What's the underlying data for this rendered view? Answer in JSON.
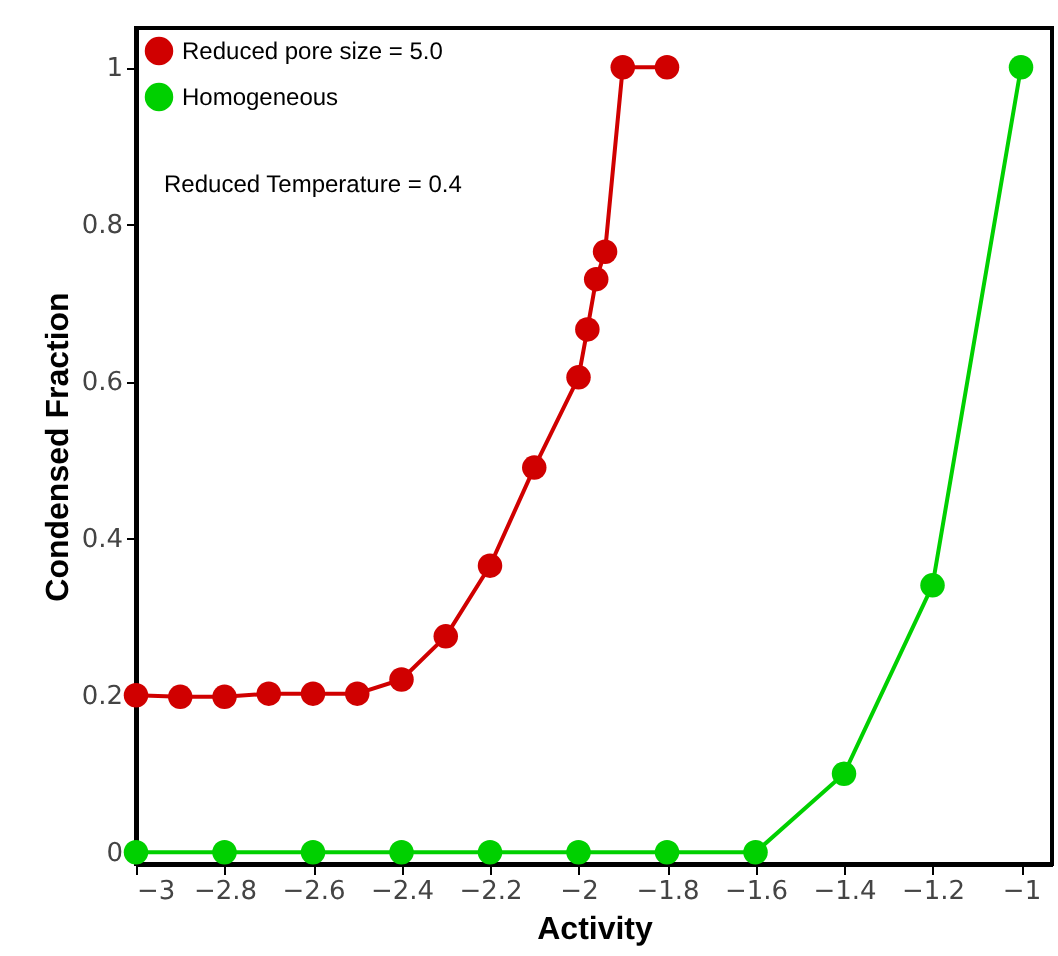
{
  "chart_data": {
    "type": "line",
    "xlabel": "Activity",
    "ylabel": "Condensed Fraction",
    "annotations": [
      "Reduced Temperature = 0.4"
    ],
    "series": [
      {
        "name": "Reduced pore size = 5.0",
        "color": "#d00000",
        "x": [
          -3,
          -2.9,
          -2.8,
          -2.7,
          -2.6,
          -2.5,
          -2.4,
          -2.3,
          -2.2,
          -2.1,
          -2.0,
          -1.98,
          -1.96,
          -1.94,
          -1.9,
          -1.8
        ],
        "values": [
          0.2,
          0.198,
          0.198,
          0.202,
          0.202,
          0.202,
          0.22,
          0.275,
          0.365,
          0.49,
          0.605,
          0.666,
          0.73,
          0.765,
          1.0,
          1.0
        ]
      },
      {
        "name": "Homogeneous",
        "color": "#00d000",
        "x": [
          -3,
          -2.8,
          -2.6,
          -2.4,
          -2.2,
          -2.0,
          -1.8,
          -1.6,
          -1.4,
          -1.2,
          -1.0
        ],
        "values": [
          0,
          0,
          0,
          0,
          0,
          0,
          0,
          0,
          0.1,
          0.34,
          1.0
        ]
      }
    ],
    "xlim": [
      -3,
      -0.93
    ],
    "ylim": [
      -0.015,
      1.05
    ],
    "xticks": [
      -3,
      -2.8,
      -2.6,
      -2.4,
      -2.2,
      -2,
      -1.8,
      -1.6,
      -1.4,
      -1.2,
      -1
    ],
    "yticks": [
      0,
      0.2,
      0.4,
      0.6,
      0.8,
      1
    ],
    "marker": "circle",
    "legend": "top left",
    "grid": false
  }
}
